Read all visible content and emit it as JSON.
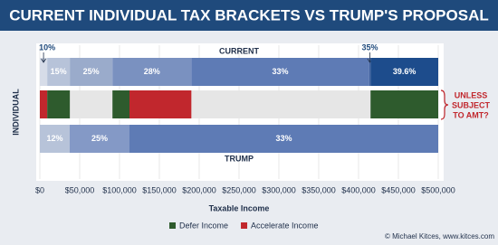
{
  "chart_data": {
    "type": "floating-bar",
    "title": "CURRENT INDIVIDUAL TAX BRACKETS VS TRUMP'S PROPOSAL",
    "ylabel": "INDIVIDUAL",
    "xlabel": "Taxable Income",
    "xlim": [
      0,
      500000
    ],
    "xticks": [
      {
        "value": 0,
        "label": "$0"
      },
      {
        "value": 50000,
        "label": "$50,000"
      },
      {
        "value": 100000,
        "label": "$100,000"
      },
      {
        "value": 150000,
        "label": "$150,000"
      },
      {
        "value": 200000,
        "label": "$200,000"
      },
      {
        "value": 250000,
        "label": "$250,000"
      },
      {
        "value": 300000,
        "label": "$300,000"
      },
      {
        "value": 350000,
        "label": "$350,000"
      },
      {
        "value": 400000,
        "label": "$400,000"
      },
      {
        "value": 450000,
        "label": "$450,000"
      },
      {
        "value": 500000,
        "label": "$500,000"
      }
    ],
    "grid": true,
    "rows": [
      {
        "name": "CURRENT",
        "name_position": "above",
        "segments": [
          {
            "label": "10%",
            "start": 0,
            "end": 9275,
            "color": "#d6dce8",
            "callout": true
          },
          {
            "label": "15%",
            "start": 9275,
            "end": 37650,
            "color": "#b7c3d9"
          },
          {
            "label": "25%",
            "start": 37650,
            "end": 91150,
            "color": "#9aabcb"
          },
          {
            "label": "28%",
            "start": 91150,
            "end": 190150,
            "color": "#7a91c0"
          },
          {
            "label": "33%",
            "start": 190150,
            "end": 413350,
            "color": "#5e7bb5"
          },
          {
            "label": "35%",
            "start": 413350,
            "end": 415050,
            "color": "#3d5f9e",
            "callout": true
          },
          {
            "label": "39.6%",
            "start": 415050,
            "end": 500000,
            "color": "#1d4c8c"
          }
        ]
      },
      {
        "segments": [
          {
            "start": 0,
            "end": 9275,
            "color": "#c1272d"
          },
          {
            "start": 9275,
            "end": 37650,
            "color": "#2e5b2d"
          },
          {
            "start": 91150,
            "end": 112500,
            "color": "#2e5b2d"
          },
          {
            "start": 112500,
            "end": 190150,
            "color": "#c1272d"
          },
          {
            "start": 415050,
            "end": 500000,
            "color": "#2e5b2d"
          }
        ]
      },
      {
        "name": "TRUMP",
        "name_position": "below",
        "segments": [
          {
            "label": "12%",
            "start": 0,
            "end": 37500,
            "color": "#b7c3d9"
          },
          {
            "label": "25%",
            "start": 37500,
            "end": 112500,
            "color": "#8499c6"
          },
          {
            "label": "33%",
            "start": 112500,
            "end": 500000,
            "color": "#5e7bb5"
          }
        ]
      }
    ],
    "legend": [
      {
        "name": "Defer Income",
        "color": "#2e5b2d"
      },
      {
        "name": "Accelerate Income",
        "color": "#c1272d"
      }
    ],
    "annotation": [
      "UNLESS",
      "SUBJECT",
      "TO AMT?"
    ],
    "credit": "© Michael Kitces, www.kitces.com"
  }
}
